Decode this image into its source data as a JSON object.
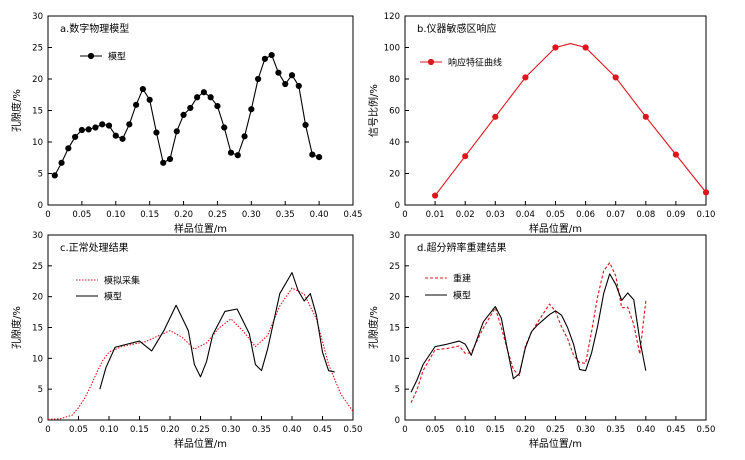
{
  "chart_data": [
    {
      "type": "line",
      "title": "a.数字物理模型",
      "xlabel": "样品位置/m",
      "ylabel": "孔隙度/%",
      "xlim": [
        0,
        0.45
      ],
      "ylim": [
        0,
        30
      ],
      "xticks": [
        0,
        0.05,
        0.1,
        0.15,
        0.2,
        0.25,
        0.3,
        0.35,
        0.4,
        0.45
      ],
      "xtick_labels": [
        "0",
        "0.05",
        "0.10",
        "0.15",
        "0.20",
        "0.25",
        "0.30",
        "0.35",
        "0.40",
        "0.45"
      ],
      "yticks": [
        0,
        5,
        10,
        15,
        20,
        25,
        30
      ],
      "ytick_labels": [
        "0",
        "5",
        "10",
        "15",
        "20",
        "25",
        "30"
      ],
      "legend": "top-left",
      "series": [
        {
          "name": "模型",
          "color": "#000000",
          "marker": "circle",
          "x": [
            0.01,
            0.02,
            0.03,
            0.04,
            0.05,
            0.06,
            0.07,
            0.08,
            0.09,
            0.1,
            0.11,
            0.12,
            0.13,
            0.14,
            0.15,
            0.16,
            0.17,
            0.18,
            0.19,
            0.2,
            0.21,
            0.22,
            0.23,
            0.24,
            0.25,
            0.26,
            0.27,
            0.28,
            0.29,
            0.3,
            0.31,
            0.32,
            0.33,
            0.34,
            0.35,
            0.36,
            0.37,
            0.38,
            0.39,
            0.4
          ],
          "y": [
            4.7,
            6.7,
            9.0,
            10.8,
            11.9,
            12.0,
            12.3,
            12.8,
            12.6,
            11.0,
            10.5,
            12.8,
            15.9,
            18.4,
            16.7,
            11.5,
            6.7,
            7.3,
            11.7,
            14.3,
            15.4,
            17.1,
            17.9,
            17.1,
            15.7,
            12.3,
            8.3,
            7.9,
            10.9,
            15.2,
            20.0,
            23.2,
            23.8,
            21.0,
            19.2,
            20.6,
            18.9,
            12.7,
            8.0,
            7.6
          ]
        }
      ]
    },
    {
      "type": "line",
      "title": "b.仪器敏感区响应",
      "xlabel": "样品位置/m",
      "ylabel": "信号比例/%",
      "xlim": [
        0,
        0.1
      ],
      "ylim": [
        0,
        120
      ],
      "xticks": [
        0,
        0.01,
        0.02,
        0.03,
        0.04,
        0.05,
        0.06,
        0.07,
        0.08,
        0.09,
        0.1
      ],
      "xtick_labels": [
        "0",
        "0.01",
        "0.02",
        "0.03",
        "0.04",
        "0.05",
        "0.06",
        "0.07",
        "0.08",
        "0.09",
        "0.10"
      ],
      "yticks": [
        0,
        20,
        40,
        60,
        80,
        100,
        120
      ],
      "ytick_labels": [
        "0",
        "20",
        "40",
        "60",
        "80",
        "100",
        "120"
      ],
      "legend": "top-left",
      "series": [
        {
          "name": "响应特征曲线",
          "color": "#e0141c",
          "marker": "circle",
          "x": [
            0.01,
            0.02,
            0.03,
            0.04,
            0.05,
            0.06,
            0.07,
            0.08,
            0.09,
            0.1
          ],
          "y": [
            6,
            31,
            56,
            81,
            100,
            100,
            81,
            56,
            32,
            8
          ],
          "curve_x": [
            0.01,
            0.02,
            0.03,
            0.04,
            0.05,
            0.055,
            0.06,
            0.07,
            0.08,
            0.09,
            0.1
          ],
          "curve_y": [
            6,
            31,
            56,
            81,
            100,
            102.5,
            100,
            81,
            56,
            32,
            8
          ]
        }
      ]
    },
    {
      "type": "line",
      "title": "c.正常处理结果",
      "xlabel": "样品位置/m",
      "ylabel": "孔隙度/%",
      "xlim": [
        0,
        0.5
      ],
      "ylim": [
        0,
        30
      ],
      "xticks": [
        0,
        0.05,
        0.1,
        0.15,
        0.2,
        0.25,
        0.3,
        0.35,
        0.4,
        0.45,
        0.5
      ],
      "xtick_labels": [
        "0",
        "0.05",
        "0.10",
        "0.15",
        "0.20",
        "0.25",
        "0.30",
        "0.35",
        "0.40",
        "0.45",
        "0.50"
      ],
      "yticks": [
        0,
        5,
        10,
        15,
        20,
        25,
        30
      ],
      "ytick_labels": [
        "0",
        "5",
        "10",
        "15",
        "20",
        "25",
        "30"
      ],
      "legend": "top-left",
      "series": [
        {
          "name": "模拟采集",
          "color": "#e0141c",
          "dash": "dotted",
          "x": [
            0.0,
            0.02,
            0.04,
            0.05,
            0.06,
            0.07,
            0.08,
            0.09,
            0.1,
            0.12,
            0.14,
            0.16,
            0.18,
            0.2,
            0.22,
            0.24,
            0.26,
            0.28,
            0.3,
            0.32,
            0.34,
            0.36,
            0.38,
            0.4,
            0.42,
            0.44,
            0.46,
            0.48,
            0.5
          ],
          "y": [
            0.1,
            0.2,
            0.8,
            2.0,
            3.5,
            5.5,
            7.7,
            9.7,
            11.0,
            11.9,
            12.3,
            12.7,
            13.6,
            14.5,
            13.4,
            11.5,
            12.5,
            14.9,
            16.4,
            14.4,
            11.9,
            13.7,
            18.5,
            21.4,
            20.4,
            16.4,
            9.0,
            4.2,
            1.4
          ]
        },
        {
          "name": "模型",
          "color": "#000000",
          "dash": "solid",
          "x": [
            0.085,
            0.095,
            0.11,
            0.13,
            0.15,
            0.17,
            0.19,
            0.21,
            0.23,
            0.24,
            0.25,
            0.26,
            0.27,
            0.29,
            0.31,
            0.33,
            0.34,
            0.35,
            0.36,
            0.38,
            0.4,
            0.41,
            0.42,
            0.43,
            0.44,
            0.45,
            0.46,
            0.47
          ],
          "y": [
            5.0,
            8.5,
            11.8,
            12.3,
            12.8,
            11.2,
            14.5,
            18.6,
            14.5,
            9.0,
            7.0,
            9.5,
            13.8,
            17.6,
            18.0,
            14.0,
            9.0,
            8.0,
            11.5,
            20.5,
            23.9,
            21.0,
            19.3,
            20.5,
            17.0,
            11.0,
            8.0,
            7.8
          ]
        }
      ]
    },
    {
      "type": "line",
      "title": "d.超分辨率重建结果",
      "xlabel": "样品位置/m",
      "ylabel": "孔隙度/%",
      "xlim": [
        0,
        0.5
      ],
      "ylim": [
        0,
        30
      ],
      "xticks": [
        0,
        0.05,
        0.1,
        0.15,
        0.2,
        0.25,
        0.3,
        0.35,
        0.4,
        0.45,
        0.5
      ],
      "xtick_labels": [
        "0",
        "0.05",
        "0.10",
        "0.15",
        "0.20",
        "0.25",
        "0.30",
        "0.35",
        "0.40",
        "0.45",
        "0.50"
      ],
      "yticks": [
        0,
        5,
        10,
        15,
        20,
        25,
        30
      ],
      "ytick_labels": [
        "0",
        "5",
        "10",
        "15",
        "20",
        "25",
        "30"
      ],
      "legend": "top-left",
      "series": [
        {
          "name": "重建",
          "color": "#e0141c",
          "dash": "dashed",
          "x": [
            0.01,
            0.02,
            0.03,
            0.05,
            0.07,
            0.09,
            0.1,
            0.11,
            0.13,
            0.15,
            0.16,
            0.17,
            0.18,
            0.19,
            0.2,
            0.21,
            0.22,
            0.24,
            0.25,
            0.26,
            0.27,
            0.28,
            0.29,
            0.3,
            0.31,
            0.32,
            0.33,
            0.34,
            0.35,
            0.36,
            0.37,
            0.38,
            0.39,
            0.4
          ],
          "y": [
            2.8,
            4.9,
            8.0,
            11.4,
            11.6,
            12.0,
            10.8,
            10.9,
            14.9,
            18.2,
            15.0,
            11.4,
            8.2,
            7.2,
            12.0,
            14.2,
            15.8,
            18.8,
            17.6,
            15.1,
            13.2,
            10.5,
            9.3,
            9.2,
            14.4,
            20.0,
            24.2,
            25.5,
            23.4,
            18.2,
            18.3,
            15.5,
            10.7,
            19.3
          ]
        },
        {
          "name": "模型",
          "color": "#000000",
          "dash": "solid",
          "x": [
            0.01,
            0.02,
            0.03,
            0.05,
            0.07,
            0.09,
            0.1,
            0.11,
            0.13,
            0.15,
            0.16,
            0.17,
            0.18,
            0.19,
            0.2,
            0.21,
            0.22,
            0.24,
            0.25,
            0.26,
            0.27,
            0.28,
            0.29,
            0.3,
            0.31,
            0.32,
            0.33,
            0.34,
            0.35,
            0.36,
            0.37,
            0.38,
            0.39,
            0.4
          ],
          "y": [
            4.5,
            6.5,
            9.0,
            11.9,
            12.3,
            12.8,
            12.3,
            10.5,
            15.9,
            18.4,
            16.5,
            11.5,
            6.7,
            7.5,
            11.7,
            14.3,
            15.4,
            17.1,
            17.7,
            17.0,
            15.0,
            12.3,
            8.2,
            8.0,
            10.9,
            15.2,
            20.5,
            23.7,
            22.0,
            19.4,
            20.6,
            19.5,
            13.0,
            8.0
          ]
        }
      ]
    }
  ]
}
